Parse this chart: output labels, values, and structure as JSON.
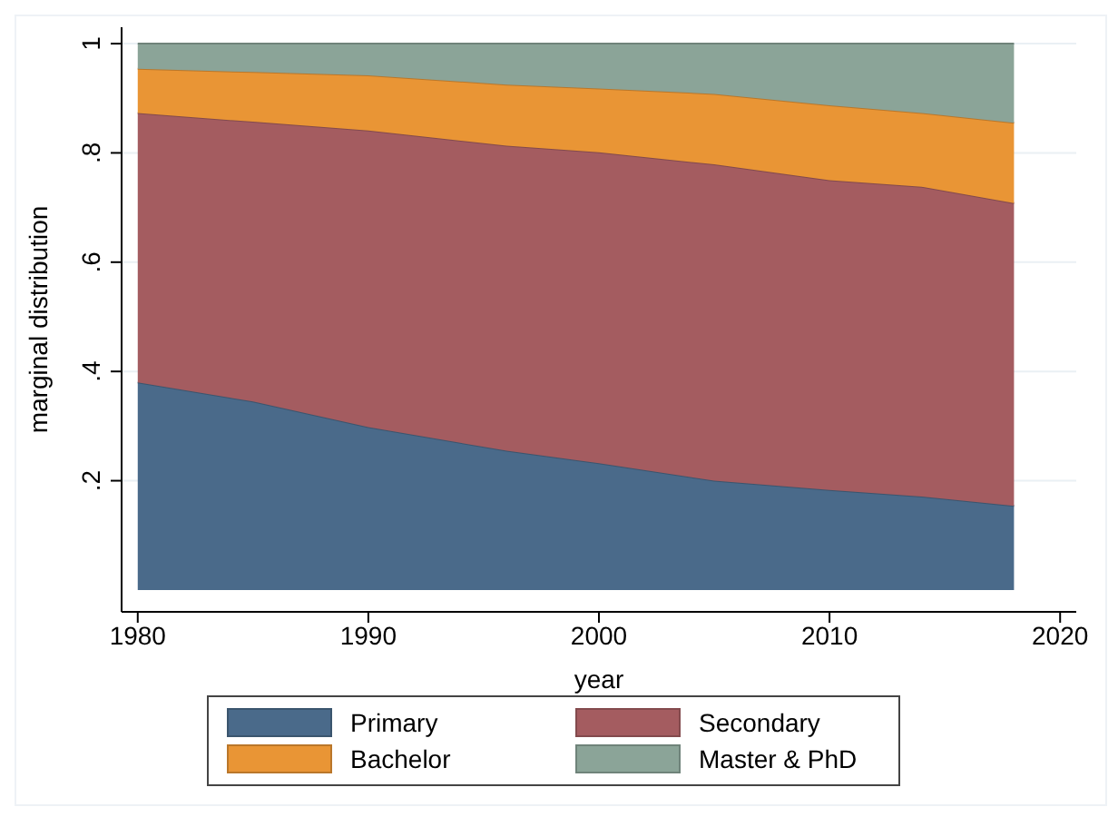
{
  "chart_data": {
    "type": "area",
    "stacked": true,
    "xlabel": "year",
    "ylabel": "marginal distribution",
    "x": [
      1980,
      1985,
      1990,
      1996,
      2000,
      2005,
      2010,
      2014,
      2018
    ],
    "series": [
      {
        "name": "Primary",
        "color": "#4a6a8a",
        "values": [
          0.38,
          0.345,
          0.298,
          0.255,
          0.232,
          0.2,
          0.183,
          0.171,
          0.154
        ]
      },
      {
        "name": "Secondary",
        "color": "#a45c60",
        "values": [
          0.493,
          0.512,
          0.543,
          0.558,
          0.569,
          0.579,
          0.567,
          0.567,
          0.554
        ]
      },
      {
        "name": "Bachelor",
        "color": "#e99535",
        "values": [
          0.081,
          0.091,
          0.101,
          0.112,
          0.117,
          0.129,
          0.137,
          0.135,
          0.147
        ]
      },
      {
        "name": "Master & PhD",
        "color": "#8ba498",
        "values": [
          0.046,
          0.052,
          0.058,
          0.075,
          0.082,
          0.092,
          0.113,
          0.127,
          0.145
        ]
      }
    ],
    "xlim": [
      1979.3,
      2020.7
    ],
    "xticks": [
      1980,
      1990,
      2000,
      2010,
      2020
    ],
    "ylim": [
      -0.04,
      1.03
    ],
    "yticks": [
      {
        "value": 0.2,
        "label": ".2"
      },
      {
        "value": 0.4,
        "label": ".4"
      },
      {
        "value": 0.6,
        "label": ".6"
      },
      {
        "value": 0.8,
        "label": ".8"
      },
      1
    ],
    "grid": "y",
    "legend": "bottom"
  }
}
